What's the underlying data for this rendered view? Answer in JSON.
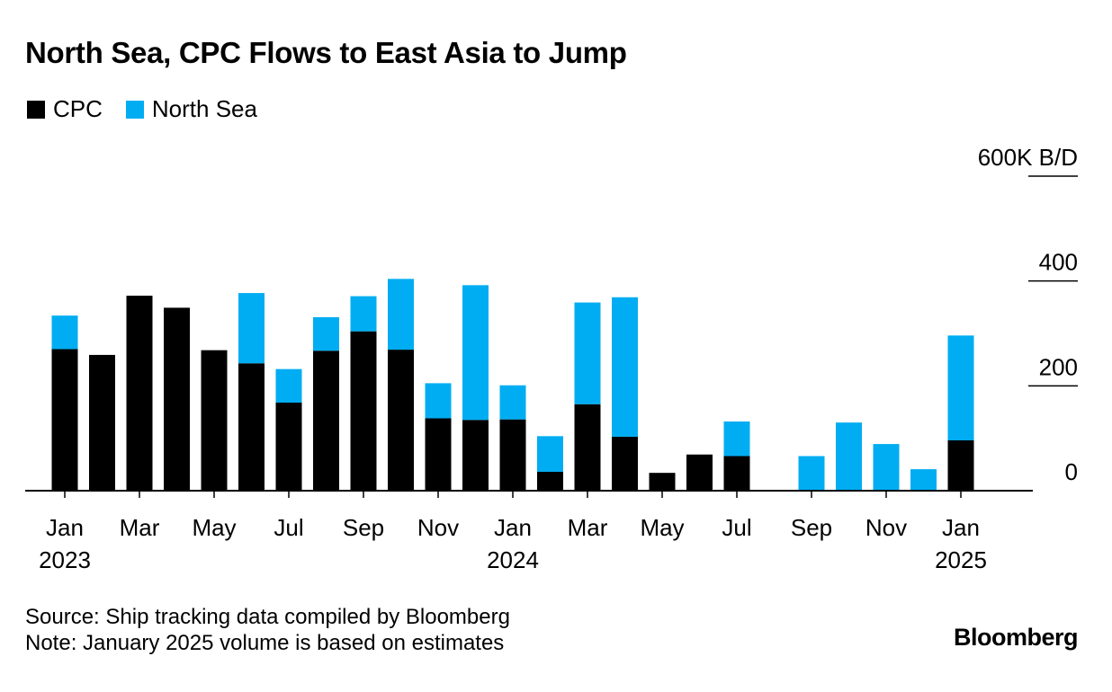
{
  "chart_data": {
    "type": "bar",
    "stacked": true,
    "title": "North Sea, CPC Flows to East Asia to Jump",
    "unit_label": "600K B/D",
    "y_ticks": [
      {
        "value": 0,
        "label": "0"
      },
      {
        "value": 200,
        "label": "200"
      },
      {
        "value": 400,
        "label": "400"
      },
      {
        "value": 600,
        "label": "600K B/D"
      }
    ],
    "ylim": [
      0,
      600
    ],
    "x_ticks": [
      {
        "index": 0,
        "month": "Jan",
        "year": "2023"
      },
      {
        "index": 2,
        "month": "Mar",
        "year": ""
      },
      {
        "index": 4,
        "month": "May",
        "year": ""
      },
      {
        "index": 6,
        "month": "Jul",
        "year": ""
      },
      {
        "index": 8,
        "month": "Sep",
        "year": ""
      },
      {
        "index": 10,
        "month": "Nov",
        "year": ""
      },
      {
        "index": 12,
        "month": "Jan",
        "year": "2024"
      },
      {
        "index": 14,
        "month": "Mar",
        "year": ""
      },
      {
        "index": 16,
        "month": "May",
        "year": ""
      },
      {
        "index": 18,
        "month": "Jul",
        "year": ""
      },
      {
        "index": 20,
        "month": "Sep",
        "year": ""
      },
      {
        "index": 22,
        "month": "Nov",
        "year": ""
      },
      {
        "index": 24,
        "month": "Jan",
        "year": "2025"
      }
    ],
    "categories": [
      "Jan 2023",
      "Feb 2023",
      "Mar 2023",
      "Apr 2023",
      "May 2023",
      "Jun 2023",
      "Jul 2023",
      "Aug 2023",
      "Sep 2023",
      "Oct 2023",
      "Nov 2023",
      "Dec 2023",
      "Jan 2024",
      "Feb 2024",
      "Mar 2024",
      "Apr 2024",
      "May 2024",
      "Jun 2024",
      "Jul 2024",
      "Aug 2024",
      "Sep 2024",
      "Oct 2024",
      "Nov 2024",
      "Dec 2024",
      "Jan 2025"
    ],
    "series": [
      {
        "name": "CPC",
        "color": "#000000",
        "values": [
          270,
          259,
          372,
          349,
          268,
          243,
          168,
          267,
          304,
          269,
          138,
          135,
          136,
          36,
          165,
          103,
          34,
          69,
          66,
          0,
          0,
          0,
          0,
          0,
          96
        ]
      },
      {
        "name": "North Sea",
        "color": "#00adf2",
        "values": [
          64,
          0,
          0,
          0,
          0,
          134,
          64,
          64,
          67,
          135,
          67,
          257,
          65,
          68,
          194,
          266,
          0,
          0,
          66,
          0,
          66,
          130,
          89,
          41,
          200
        ]
      }
    ]
  },
  "legend": [
    {
      "label": "CPC",
      "color": "#000000"
    },
    {
      "label": "North Sea",
      "color": "#00adf2"
    }
  ],
  "footer": {
    "source": "Source: Ship tracking data compiled by Bloomberg",
    "note": "Note: January 2025 volume is based on estimates"
  },
  "brand": "Bloomberg"
}
